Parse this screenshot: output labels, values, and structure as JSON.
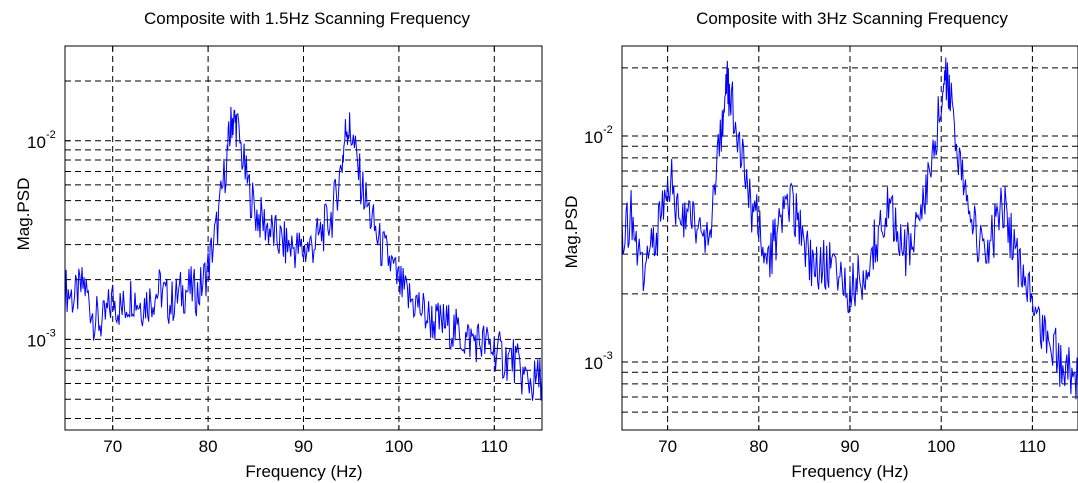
{
  "chart_data": [
    {
      "type": "line",
      "title": "Composite with 1.5Hz Scanning Frequency",
      "xlabel": "Frequency (Hz)",
      "ylabel": "Mag.PSD",
      "xlim": [
        65,
        115
      ],
      "ylim": [
        0.00035,
        0.03
      ],
      "yscale": "log",
      "grid": true,
      "xticks": [
        70,
        80,
        90,
        100,
        110
      ],
      "yticks": [
        {
          "base": "10",
          "exp": "-3"
        },
        {
          "base": "10",
          "exp": "-2"
        }
      ],
      "series": [
        {
          "color": "#0000ff",
          "x": [
            65,
            66,
            67,
            68,
            69,
            70,
            71,
            72,
            73,
            74,
            75,
            76,
            77,
            78,
            79,
            80,
            81,
            82,
            82.5,
            83,
            84,
            85,
            86,
            87,
            88,
            89,
            90,
            91,
            92,
            93,
            94,
            94.5,
            95,
            96,
            97,
            98,
            99,
            100,
            101,
            102,
            103,
            104,
            105,
            106,
            107,
            108,
            109,
            110,
            111,
            112,
            113,
            114,
            115
          ],
          "y": [
            0.0018,
            0.0016,
            0.0019,
            0.0013,
            0.0012,
            0.0016,
            0.0014,
            0.0017,
            0.0015,
            0.0016,
            0.0018,
            0.0015,
            0.0017,
            0.0018,
            0.0017,
            0.0023,
            0.0038,
            0.0085,
            0.013,
            0.012,
            0.0065,
            0.0043,
            0.0038,
            0.0033,
            0.003,
            0.0029,
            0.0028,
            0.003,
            0.0035,
            0.0042,
            0.0075,
            0.012,
            0.011,
            0.0062,
            0.0042,
            0.003,
            0.0025,
            0.0019,
            0.0016,
            0.0015,
            0.0013,
            0.0012,
            0.0012,
            0.0011,
            0.001,
            0.001,
            0.00095,
            0.0009,
            0.0008,
            0.0008,
            0.00065,
            0.0006,
            0.00065
          ]
        }
      ]
    },
    {
      "type": "line",
      "title": "Composite with 3Hz Scanning Frequency",
      "xlabel": "Frequency (Hz)",
      "ylabel": "Mag.PSD",
      "xlim": [
        65,
        115
      ],
      "ylim": [
        0.0005,
        0.025
      ],
      "yscale": "log",
      "grid": true,
      "xticks": [
        70,
        80,
        90,
        100,
        110
      ],
      "yticks": [
        {
          "base": "10",
          "exp": "-3"
        },
        {
          "base": "10",
          "exp": "-2"
        }
      ],
      "series": [
        {
          "color": "#0000ff",
          "x": [
            65,
            66,
            67,
            68,
            69,
            70,
            71,
            72,
            73,
            74,
            75,
            76,
            76.5,
            77,
            78,
            79,
            80,
            81,
            82,
            83,
            84,
            85,
            86,
            87,
            88,
            89,
            90,
            91,
            92,
            93,
            94,
            95,
            96,
            97,
            98,
            99,
            100,
            100.5,
            101,
            102,
            103,
            104,
            105,
            106,
            107,
            108,
            109,
            110,
            111,
            112,
            113,
            114,
            115
          ],
          "y": [
            0.0035,
            0.0045,
            0.0025,
            0.003,
            0.004,
            0.007,
            0.005,
            0.004,
            0.0045,
            0.0035,
            0.005,
            0.011,
            0.0165,
            0.015,
            0.0085,
            0.005,
            0.004,
            0.003,
            0.0035,
            0.0055,
            0.0045,
            0.003,
            0.0028,
            0.0027,
            0.0026,
            0.0025,
            0.002,
            0.0023,
            0.0028,
            0.0035,
            0.005,
            0.004,
            0.003,
            0.0035,
            0.005,
            0.008,
            0.0145,
            0.017,
            0.015,
            0.008,
            0.005,
            0.0035,
            0.003,
            0.004,
            0.005,
            0.003,
            0.0022,
            0.0018,
            0.0015,
            0.0012,
            0.001,
            0.0009,
            0.0008
          ]
        }
      ]
    }
  ]
}
